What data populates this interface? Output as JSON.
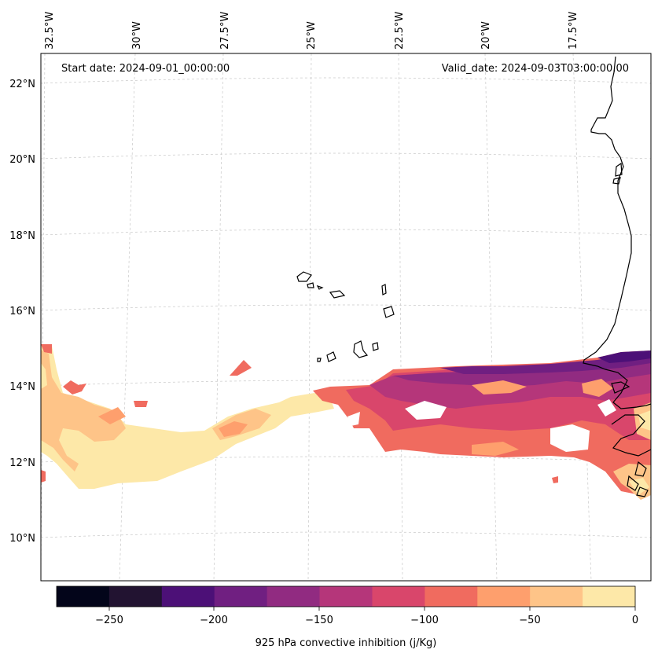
{
  "map": {
    "start_date_text": "Start date: 2024-09-01_00:00:00",
    "valid_date_text": "Valid_date: 2024-09-03T03:00:00.00",
    "longitude_labels": [
      "32.5°W",
      "30°W",
      "27.5°W",
      "25°W",
      "22.5°W",
      "20°W",
      "17.5°W"
    ],
    "latitude_labels": [
      "22°N",
      "20°N",
      "18°N",
      "16°N",
      "14°N",
      "12°N",
      "10°N"
    ],
    "gridlines": true,
    "coastline_color": "#000000"
  },
  "colorbar": {
    "label": "925 hPa convective inhibition (j/Kg)",
    "ticks": [
      "−250",
      "−200",
      "−150",
      "−100",
      "−50",
      "0"
    ],
    "levels": [
      -275,
      -250,
      -225,
      -200,
      -175,
      -150,
      -125,
      -100,
      -75,
      -50,
      -25,
      0
    ],
    "colors": [
      "#03051a",
      "#221331",
      "#4c1077",
      "#701f81",
      "#912b81",
      "#b5367a",
      "#d9466b",
      "#f06b5f",
      "#fe9f6d",
      "#fec488",
      "#fde8a8"
    ]
  }
}
